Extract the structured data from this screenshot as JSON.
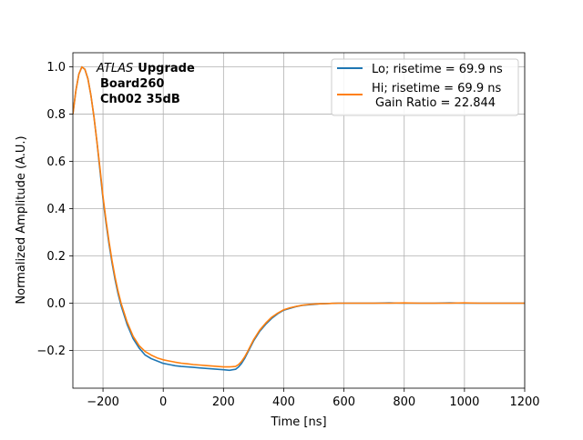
{
  "chart_data": {
    "type": "line",
    "title": "",
    "xlabel": "Time [ns]",
    "ylabel": "Normalized Amplitude (A.U.)",
    "xlim": [
      -300,
      1200
    ],
    "ylim": [
      -0.36,
      1.06
    ],
    "grid": true,
    "legend_position": "top-right",
    "x_ticks": [
      -200,
      0,
      200,
      400,
      600,
      800,
      1000,
      1200
    ],
    "x_tick_labels": [
      "−200",
      "0",
      "200",
      "400",
      "600",
      "800",
      "1000",
      "1200"
    ],
    "y_ticks": [
      -0.2,
      0.0,
      0.2,
      0.4,
      0.6,
      0.8,
      1.0
    ],
    "y_tick_labels": [
      "−0.2",
      "0.0",
      "0.2",
      "0.4",
      "0.6",
      "0.8",
      "1.0"
    ],
    "annotation": {
      "italic": "ATLAS",
      "bold": "Upgrade",
      "line2": "Board260",
      "line3": "Ch002 35dB"
    },
    "series": [
      {
        "name": "Lo; risetime = 69.9 ns",
        "color": "#1f77b4",
        "x": [
          -300,
          -290,
          -280,
          -270,
          -260,
          -250,
          -240,
          -230,
          -220,
          -210,
          -200,
          -190,
          -180,
          -170,
          -160,
          -150,
          -140,
          -130,
          -120,
          -110,
          -100,
          -80,
          -60,
          -40,
          -20,
          0,
          20,
          40,
          60,
          80,
          100,
          120,
          140,
          160,
          180,
          200,
          220,
          240,
          250,
          260,
          270,
          280,
          290,
          300,
          310,
          320,
          340,
          360,
          380,
          400,
          420,
          440,
          460,
          480,
          500,
          520,
          540,
          560,
          580,
          600,
          650,
          700,
          750,
          800,
          850,
          900,
          950,
          1000,
          1050,
          1100,
          1150,
          1200
        ],
        "y": [
          0.8,
          0.9,
          0.97,
          1.0,
          0.99,
          0.95,
          0.88,
          0.79,
          0.68,
          0.56,
          0.44,
          0.34,
          0.25,
          0.17,
          0.1,
          0.04,
          -0.01,
          -0.05,
          -0.09,
          -0.12,
          -0.15,
          -0.19,
          -0.22,
          -0.235,
          -0.245,
          -0.255,
          -0.26,
          -0.265,
          -0.268,
          -0.27,
          -0.272,
          -0.274,
          -0.276,
          -0.278,
          -0.28,
          -0.282,
          -0.284,
          -0.28,
          -0.27,
          -0.255,
          -0.235,
          -0.21,
          -0.185,
          -0.16,
          -0.14,
          -0.12,
          -0.09,
          -0.065,
          -0.045,
          -0.03,
          -0.022,
          -0.015,
          -0.01,
          -0.007,
          -0.005,
          -0.003,
          -0.002,
          -0.001,
          0.0,
          0.0,
          0.0,
          0.0,
          0.001,
          0.0,
          0.0,
          0.0,
          0.001,
          0.0,
          0.0,
          0.0,
          0.0,
          0.0
        ]
      },
      {
        "name": "Hi; risetime = 69.9 ns",
        "name_line2": "Gain Ratio = 22.844",
        "color": "#ff7f0e",
        "x": [
          -300,
          -290,
          -280,
          -270,
          -260,
          -250,
          -240,
          -230,
          -220,
          -210,
          -200,
          -190,
          -180,
          -170,
          -160,
          -150,
          -140,
          -130,
          -120,
          -110,
          -100,
          -80,
          -60,
          -40,
          -20,
          0,
          20,
          40,
          60,
          80,
          100,
          120,
          140,
          160,
          180,
          200,
          220,
          240,
          250,
          260,
          270,
          280,
          290,
          300,
          310,
          320,
          340,
          360,
          380,
          400,
          420,
          440,
          460,
          480,
          500,
          520,
          540,
          560,
          580,
          600,
          650,
          700,
          750,
          800,
          850,
          900,
          950,
          1000,
          1050,
          1100,
          1150,
          1200
        ],
        "y": [
          0.8,
          0.9,
          0.97,
          1.0,
          0.99,
          0.95,
          0.88,
          0.79,
          0.68,
          0.57,
          0.45,
          0.35,
          0.26,
          0.18,
          0.11,
          0.05,
          0.0,
          -0.04,
          -0.08,
          -0.11,
          -0.14,
          -0.18,
          -0.205,
          -0.22,
          -0.232,
          -0.24,
          -0.245,
          -0.25,
          -0.254,
          -0.257,
          -0.26,
          -0.262,
          -0.264,
          -0.266,
          -0.268,
          -0.27,
          -0.27,
          -0.268,
          -0.26,
          -0.247,
          -0.228,
          -0.205,
          -0.18,
          -0.155,
          -0.135,
          -0.115,
          -0.085,
          -0.06,
          -0.042,
          -0.028,
          -0.02,
          -0.014,
          -0.009,
          -0.006,
          -0.004,
          -0.003,
          -0.002,
          -0.001,
          0.0,
          0.0,
          0.0,
          0.0,
          0.0,
          0.001,
          0.0,
          0.0,
          0.0,
          0.001,
          0.0,
          0.0,
          0.0,
          0.0
        ]
      }
    ]
  }
}
